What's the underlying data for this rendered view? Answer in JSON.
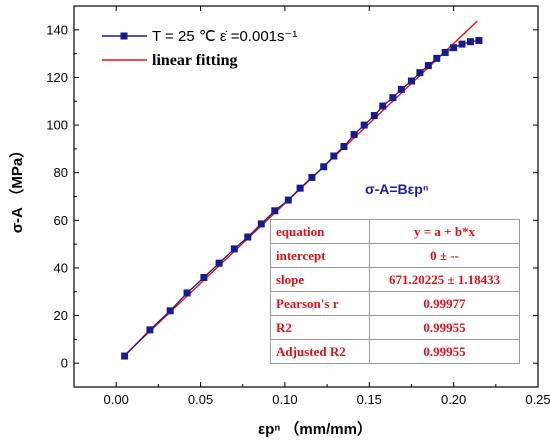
{
  "chart_data": {
    "type": "scatter",
    "xlabel": "εpⁿ （mm/mm）",
    "ylabel": "σ-A （MPa）",
    "xlim": [
      -0.025,
      0.25
    ],
    "ylim": [
      -10,
      150
    ],
    "xticks": [
      "0.00",
      "0.05",
      "0.10",
      "0.15",
      "0.20",
      "0.25"
    ],
    "yticks": [
      "0",
      "20",
      "40",
      "60",
      "80",
      "100",
      "120",
      "140"
    ],
    "grid": false,
    "legend": "top-left",
    "legend_entries": [
      {
        "label": "T = 25 ℃   ε̇ =0.001s⁻¹",
        "style": "line-square-markers",
        "color": "#1a1a8c"
      },
      {
        "label": "linear fitting",
        "style": "line",
        "color": "#e01010"
      }
    ],
    "annotation": "σ-A=Bεpⁿ",
    "series": [
      {
        "name": "T = 25 ℃   ε̇ =0.001s⁻¹",
        "color": "#1a1a8c",
        "x": [
          0.005,
          0.02,
          0.032,
          0.042,
          0.052,
          0.061,
          0.07,
          0.078,
          0.086,
          0.094,
          0.102,
          0.109,
          0.116,
          0.123,
          0.129,
          0.135,
          0.141,
          0.147,
          0.153,
          0.158,
          0.164,
          0.169,
          0.175,
          0.18,
          0.185,
          0.19,
          0.195,
          0.2,
          0.205,
          0.21,
          0.215
        ],
        "y": [
          3,
          14,
          22,
          29.5,
          36,
          42,
          48,
          53,
          58.5,
          64,
          68.5,
          73.5,
          78,
          82.5,
          87,
          91,
          96,
          100,
          104,
          108,
          111.5,
          115,
          118.5,
          122,
          125,
          128,
          130.5,
          132.5,
          134,
          135,
          135.5
        ]
      },
      {
        "name": "linear fitting",
        "color": "#e01010",
        "x": [
          0.005,
          0.214
        ],
        "y": [
          3.36,
          143.64
        ]
      }
    ],
    "fit_table": [
      {
        "label": "equation",
        "value": "y = a + b*x"
      },
      {
        "label": "intercept",
        "value": "0 ± --"
      },
      {
        "label": "slope",
        "value": "671.20225 ± 1.18433"
      },
      {
        "label": "Pearson's r",
        "value": "0.99977"
      },
      {
        "label": "R2",
        "value": "0.99955"
      },
      {
        "label": "Adjusted R2",
        "value": "0.99955"
      }
    ]
  }
}
